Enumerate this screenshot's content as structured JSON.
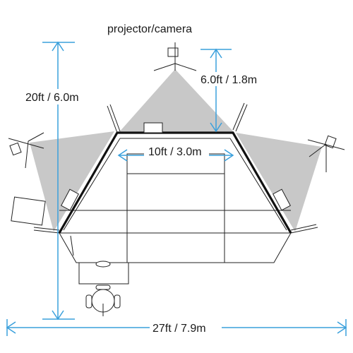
{
  "labels": {
    "projector_camera": "projector/camera",
    "height_dimension": "6.0ft / 1.8m",
    "depth_dimension": "20ft / 6.0m",
    "screen_width": "10ft / 3.0m",
    "total_width": "27ft / 7.9m"
  },
  "colors": {
    "dimension_line": "#3aa0dc",
    "projection_beam": "#c8c8c8",
    "wall": "#111111"
  }
}
